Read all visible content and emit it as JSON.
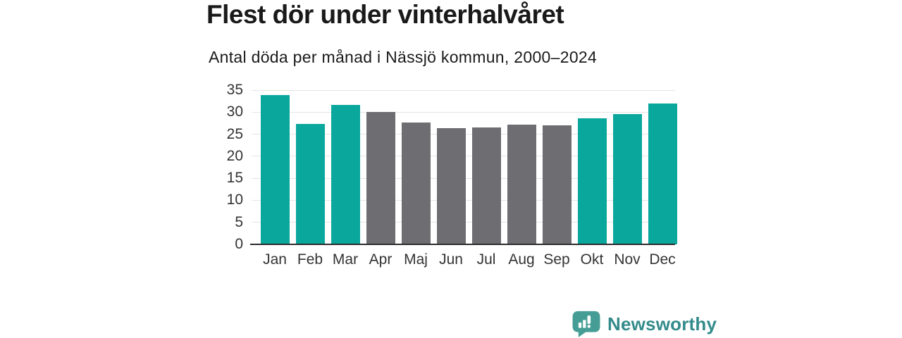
{
  "header": {
    "title": "Flest dör under vinterhalvåret",
    "subtitle": "Antal döda per månad i Nässjö kommun, 2000–2024"
  },
  "chart_data": {
    "type": "bar",
    "title": "Flest dör under vinterhalvåret",
    "subtitle": "Antal döda per månad i Nässjö kommun, 2000–2024",
    "categories": [
      "Jan",
      "Feb",
      "Mar",
      "Apr",
      "Maj",
      "Jun",
      "Jul",
      "Aug",
      "Sep",
      "Okt",
      "Nov",
      "Dec"
    ],
    "values": [
      33.9,
      27.4,
      31.6,
      30.1,
      27.6,
      26.4,
      26.5,
      27.2,
      27.0,
      28.6,
      29.6,
      32.0
    ],
    "groups": [
      "winter",
      "winter",
      "winter",
      "summer",
      "summer",
      "summer",
      "summer",
      "summer",
      "summer",
      "winter",
      "winter",
      "winter"
    ],
    "group_colors": {
      "winter": "#0AA79D",
      "summer": "#6D6D72"
    },
    "xlabel": "",
    "ylabel": "",
    "ylim": [
      0,
      35
    ],
    "yticks": [
      0,
      5,
      10,
      15,
      20,
      25,
      30,
      35
    ],
    "grid": "horizontal-light",
    "legend": "none"
  },
  "branding": {
    "name": "Newsworthy",
    "icon": "newsworthy-speech-bubble-bar-chart-icon",
    "icon_color": "#459D96",
    "text_color": "#348B8B"
  },
  "colors": {
    "background": "#FFFFFF",
    "title_text": "#191919",
    "axis_line": "#2B2B2B",
    "gridline": "#E4E4E4",
    "tick_label": "#333333"
  }
}
